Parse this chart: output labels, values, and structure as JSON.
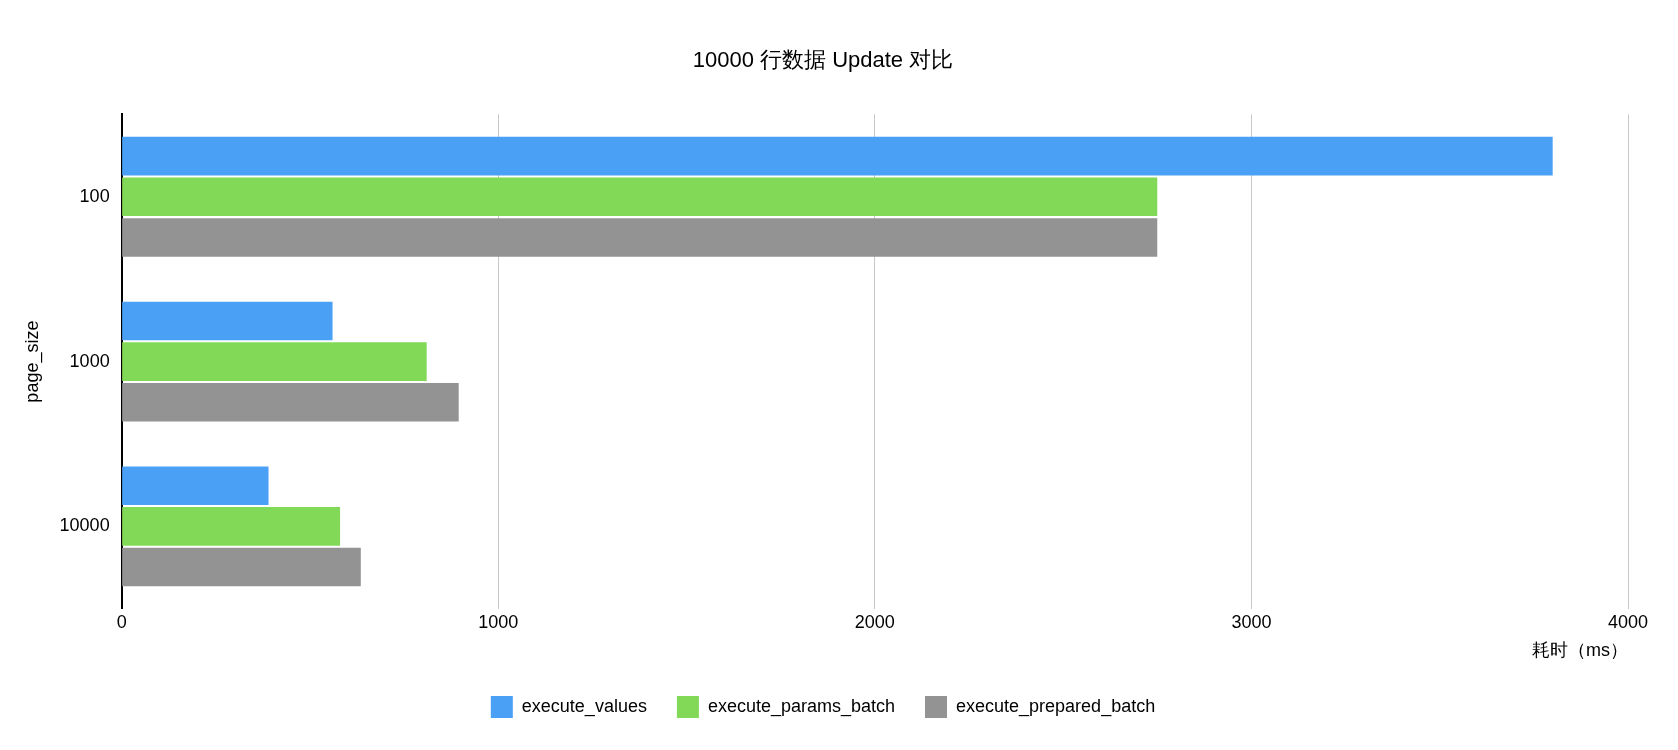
{
  "chart_data": {
    "type": "bar",
    "orientation": "horizontal",
    "title": "10000 行数据 Update 对比",
    "xlabel": "耗时（ms）",
    "ylabel": "page_size",
    "categories": [
      "100",
      "1000",
      "10000"
    ],
    "series": [
      {
        "name": "execute_values",
        "color": "#4aa0f5",
        "values": [
          3800,
          560,
          390
        ]
      },
      {
        "name": "execute_params_batch",
        "color": "#82d957",
        "values": [
          2750,
          810,
          580
        ]
      },
      {
        "name": "execute_prepared_batch",
        "color": "#939393",
        "values": [
          2750,
          895,
          635
        ]
      }
    ],
    "xlim": [
      0,
      4000
    ],
    "xticks": [
      0,
      1000,
      2000,
      3000,
      4000
    ],
    "grid": "x",
    "legend": "bottom"
  }
}
